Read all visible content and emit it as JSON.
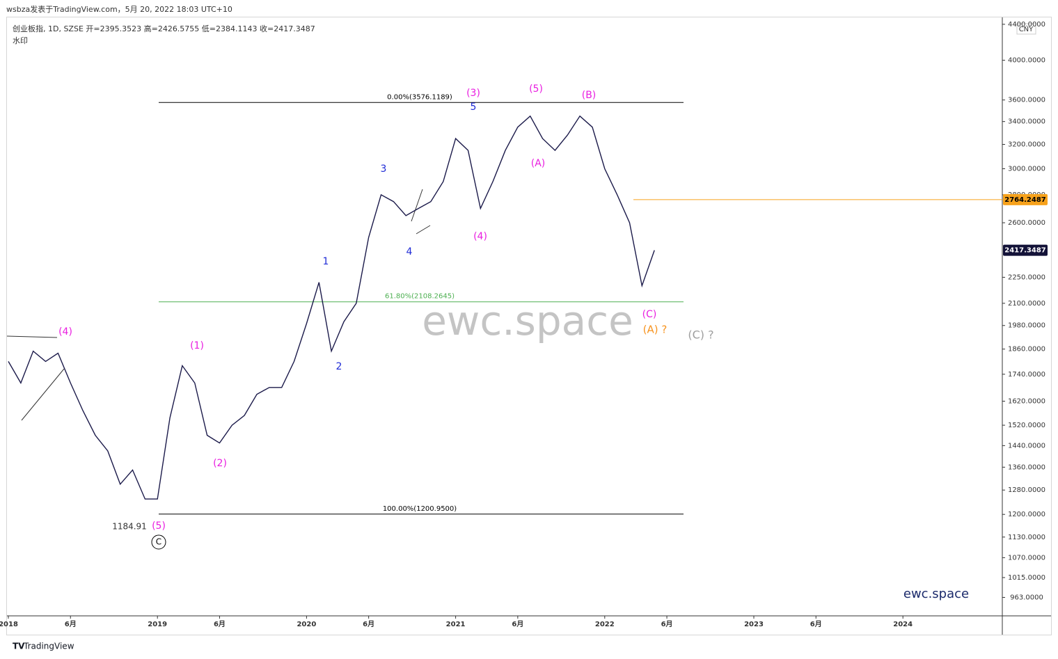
{
  "header": {
    "published": "wsbza发表于TradingView.com，5月 20, 2022 18:03 UTC+10",
    "symbol": "创业板指, 1D, SZSE  开=2395.3523  高=2426.5755  低=2384.1143  收=2417.3487",
    "watermark_note": "水印"
  },
  "footer": {
    "brand": "TradingView"
  },
  "chart_data": {
    "type": "line",
    "currency": "CNY",
    "log_scale": true,
    "color": "#1b1a4a",
    "x": [
      "2018-01",
      "2018-02",
      "2018-03",
      "2018-04",
      "2018-05",
      "2018-06",
      "2018-07",
      "2018-08",
      "2018-09",
      "2018-10",
      "2018-11",
      "2018-12",
      "2019-01",
      "2019-02",
      "2019-03",
      "2019-04",
      "2019-05",
      "2019-06",
      "2019-07",
      "2019-08",
      "2019-09",
      "2019-10",
      "2019-11",
      "2019-12",
      "2020-01",
      "2020-02",
      "2020-03",
      "2020-04",
      "2020-05",
      "2020-06",
      "2020-07",
      "2020-08",
      "2020-09",
      "2020-10",
      "2020-11",
      "2020-12",
      "2021-01",
      "2021-02",
      "2021-03",
      "2021-04",
      "2021-05",
      "2021-06",
      "2021-07",
      "2021-08",
      "2021-09",
      "2021-10",
      "2021-11",
      "2021-12",
      "2022-01",
      "2022-02",
      "2022-03",
      "2022-04",
      "2022-05"
    ],
    "values": [
      1800,
      1700,
      1850,
      1800,
      1840,
      1700,
      1580,
      1480,
      1420,
      1300,
      1350,
      1250,
      1250,
      1550,
      1780,
      1700,
      1480,
      1450,
      1520,
      1560,
      1650,
      1680,
      1680,
      1800,
      1990,
      2220,
      1850,
      2000,
      2100,
      2500,
      2800,
      2750,
      2650,
      2700,
      2750,
      2900,
      3250,
      3150,
      2700,
      2900,
      3150,
      3350,
      3450,
      3250,
      3150,
      3280,
      3450,
      3350,
      3000,
      2800,
      2600,
      2200,
      2417
    ],
    "xlim": [
      "2018-01",
      "2024-09"
    ],
    "xticks": [
      {
        "value": "2018-01",
        "label": "2018"
      },
      {
        "value": "2018-06",
        "label": "6月"
      },
      {
        "value": "2019-01",
        "label": "2019"
      },
      {
        "value": "2019-06",
        "label": "6月"
      },
      {
        "value": "2020-01",
        "label": "2020"
      },
      {
        "value": "2020-06",
        "label": "6月"
      },
      {
        "value": "2021-01",
        "label": "2021"
      },
      {
        "value": "2021-06",
        "label": "6月"
      },
      {
        "value": "2022-01",
        "label": "2022"
      },
      {
        "value": "2022-06",
        "label": "6月"
      },
      {
        "value": "2023-01",
        "label": "2023"
      },
      {
        "value": "2023-06",
        "label": "6月"
      },
      {
        "value": "2024-01",
        "label": "2024"
      }
    ],
    "ylim": [
      917,
      4440
    ],
    "yticks": [
      {
        "value": 4400,
        "label": "4400.0000"
      },
      {
        "value": 4000,
        "label": "4000.0000"
      },
      {
        "value": 3600,
        "label": "3600.0000"
      },
      {
        "value": 3400,
        "label": "3400.0000"
      },
      {
        "value": 3200,
        "label": "3200.0000"
      },
      {
        "value": 3000,
        "label": "3000.0000"
      },
      {
        "value": 2800,
        "label": "2800.0000"
      },
      {
        "value": 2600,
        "label": "2600.0000"
      },
      {
        "value": 2250,
        "label": "2250.0000"
      },
      {
        "value": 2100,
        "label": "2100.0000"
      },
      {
        "value": 1980,
        "label": "1980.0000"
      },
      {
        "value": 1860,
        "label": "1860.0000"
      },
      {
        "value": 1740,
        "label": "1740.0000"
      },
      {
        "value": 1620,
        "label": "1620.0000"
      },
      {
        "value": 1520,
        "label": "1520.0000"
      },
      {
        "value": 1440,
        "label": "1440.0000"
      },
      {
        "value": 1360,
        "label": "1360.0000"
      },
      {
        "value": 1280,
        "label": "1280.0000"
      },
      {
        "value": 1200,
        "label": "1200.0000"
      },
      {
        "value": 1130,
        "label": "1130.0000"
      },
      {
        "value": 1070,
        "label": "1070.0000"
      },
      {
        "value": 1015,
        "label": "1015.0000"
      },
      {
        "value": 963,
        "label": "963.0000"
      }
    ],
    "fib_levels": [
      {
        "label": "0.00%(3576.1189)",
        "value": 3576.1189,
        "color": "#000000"
      },
      {
        "label": "61.80%(2108.2645)",
        "value": 2108.2645,
        "color": "#4caf50"
      },
      {
        "label": "100.00%(1200.9500)",
        "value": 1200.95,
        "color": "#000000"
      }
    ],
    "price_lines": [
      {
        "value": 2764.2487,
        "color": "#f7a21b",
        "line": true
      },
      {
        "value": 2417.3487,
        "color": "#131238",
        "line": false
      }
    ],
    "annotations": [
      {
        "text": "(4)",
        "color": "#e91ee0"
      },
      {
        "text": "(1)",
        "color": "#e91ee0"
      },
      {
        "text": "(2)",
        "color": "#e91ee0"
      },
      {
        "text": "(5)",
        "color": "#e91ee0"
      },
      {
        "text": "C",
        "color": "#000000"
      },
      {
        "text": "1184.91",
        "color": "#333333"
      },
      {
        "text": "1",
        "color": "#1f2bd6"
      },
      {
        "text": "2",
        "color": "#1f2bd6"
      },
      {
        "text": "3",
        "color": "#1f2bd6"
      },
      {
        "text": "4",
        "color": "#1f2bd6"
      },
      {
        "text": "5",
        "color": "#1f2bd6"
      },
      {
        "text": "(3)",
        "color": "#e91ee0"
      },
      {
        "text": "(4)",
        "color": "#e91ee0"
      },
      {
        "text": "(5)",
        "color": "#e91ee0"
      },
      {
        "text": "(A)",
        "color": "#e91ee0"
      },
      {
        "text": "(B)",
        "color": "#e91ee0"
      },
      {
        "text": "(C)",
        "color": "#e91ee0"
      },
      {
        "text": "(A) ?",
        "color": "#f7931e"
      },
      {
        "text": "(C) ?",
        "color": "#9e9e9e"
      }
    ],
    "watermark": "ewc.space",
    "brand_label": "ewc.space"
  }
}
